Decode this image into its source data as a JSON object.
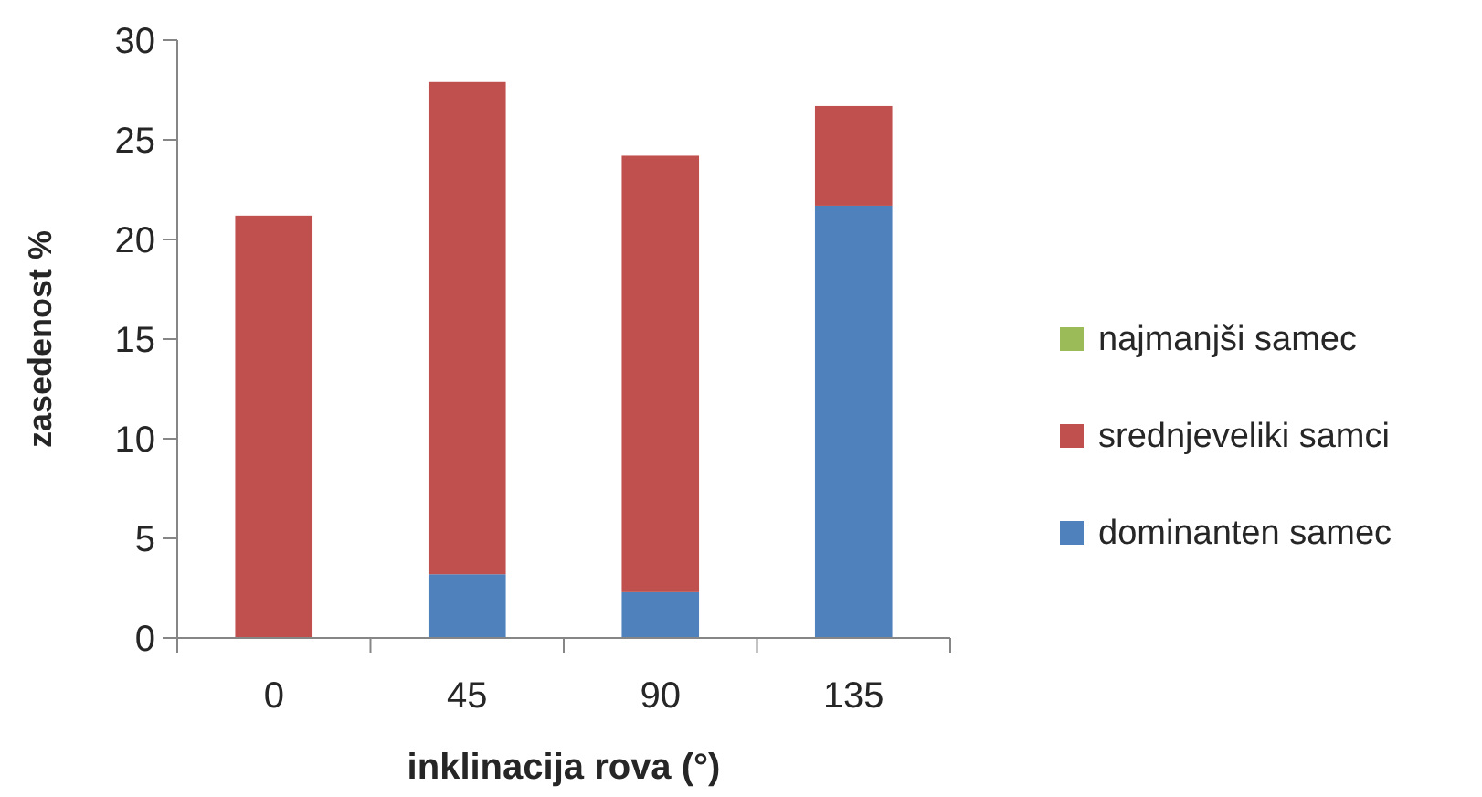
{
  "chart_data": {
    "type": "bar",
    "stacked": true,
    "xlabel": "inklinacija rova (°)",
    "ylabel": "zasedenost %",
    "categories": [
      "0",
      "45",
      "90",
      "135"
    ],
    "series": [
      {
        "name": "dominanten samec",
        "color": "#4f81bd",
        "values": [
          0,
          3.2,
          2.3,
          21.7
        ]
      },
      {
        "name": "srednjeveliki samci",
        "color": "#c0504d",
        "values": [
          21.2,
          24.7,
          21.9,
          5.0
        ]
      },
      {
        "name": "najmanjši samec",
        "color": "#9bbb59",
        "values": [
          0,
          0,
          0,
          0
        ]
      }
    ],
    "ylim": [
      0,
      30
    ],
    "yticks": [
      0,
      5,
      10,
      15,
      20,
      25,
      30
    ],
    "grid": false,
    "legend": "right"
  }
}
